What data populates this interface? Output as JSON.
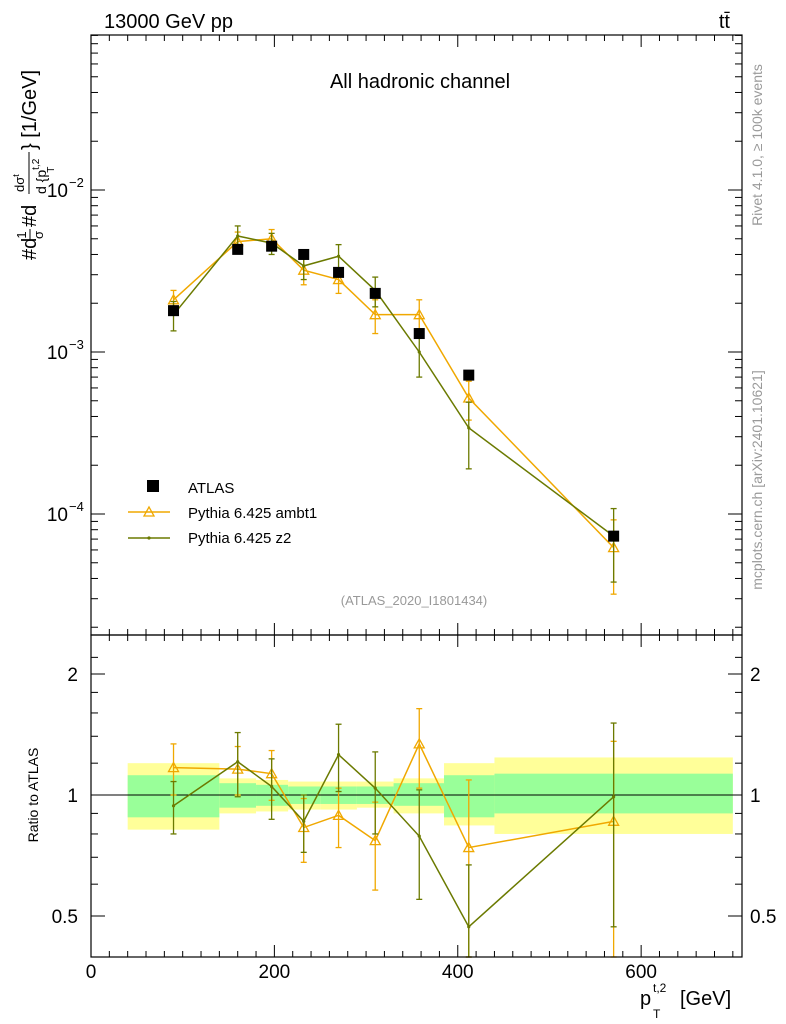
{
  "header": {
    "left": "13000 GeV pp",
    "right": "tt̄"
  },
  "side_text": {
    "rivet": "Rivet 4.1.0, ≥ 100k events",
    "mcplots": "mcplots.cern.ch [arXiv:2401.10621]"
  },
  "colors": {
    "data": "#000000",
    "ambt1": "#f0a800",
    "z2": "#6b7a00",
    "band_inner": "#99ff99",
    "band_outer": "#ffff99"
  },
  "chart_data": {
    "type": "scatter",
    "title": "All hadronic channel",
    "watermark": "(ATLAS_2020_I1801434)",
    "ylabel_main": {
      "pre": "#d",
      "frac1_num": "1",
      "frac1_den": "σ",
      "mid": "#d",
      "frac2_num": "dσ",
      "frac2_num_sup": "t",
      "frac2_den": "d {p",
      "frac2_den_sup": "t,2",
      "frac2_den_sub": "T",
      "close": "}",
      "units": "[1/GeV]"
    },
    "ylabel_ratio": "Ratio to ATLAS",
    "xlabel": {
      "main": "p",
      "sup": "t,2",
      "sub": "T",
      "units": "[GeV]"
    },
    "xlim": [
      0,
      710
    ],
    "ylim_main": [
      2e-05,
      0.1
    ],
    "ylim_ratio": [
      0.4,
      2.4
    ],
    "x_ticks": [
      "0",
      "200",
      "400",
      "600"
    ],
    "y_ticks_main": [
      {
        "base": "10",
        "exp": "−2"
      },
      {
        "base": "10",
        "exp": "−3"
      },
      {
        "base": "10",
        "exp": "−4"
      }
    ],
    "y_ticks_ratio": [
      "2",
      "1",
      "0.5"
    ],
    "legend": {
      "position": "bottom-left",
      "entries": [
        "ATLAS",
        "Pythia 6.425 ambt1",
        "Pythia 6.425 z2"
      ]
    },
    "bins": [
      {
        "lo": 40,
        "hi": 140
      },
      {
        "lo": 140,
        "hi": 180
      },
      {
        "lo": 180,
        "hi": 215
      },
      {
        "lo": 215,
        "hi": 250
      },
      {
        "lo": 250,
        "hi": 290
      },
      {
        "lo": 290,
        "hi": 330
      },
      {
        "lo": 330,
        "hi": 385
      },
      {
        "lo": 385,
        "hi": 440
      },
      {
        "lo": 440,
        "hi": 700
      }
    ],
    "atlas": {
      "name": "ATLAS",
      "x": [
        90,
        160,
        197,
        232,
        270,
        310,
        358,
        412,
        570
      ],
      "y": [
        0.0018,
        0.0043,
        0.0045,
        0.004,
        0.0031,
        0.0023,
        0.0013,
        0.00072,
        7.3e-05
      ],
      "band_inner": [
        [
          0.88,
          1.12
        ],
        [
          0.93,
          1.07
        ],
        [
          0.94,
          1.06
        ],
        [
          0.95,
          1.05
        ],
        [
          0.95,
          1.05
        ],
        [
          0.95,
          1.05
        ],
        [
          0.94,
          1.07
        ],
        [
          0.88,
          1.12
        ],
        [
          0.9,
          1.13
        ]
      ],
      "band_outer": [
        [
          0.82,
          1.2
        ],
        [
          0.9,
          1.1
        ],
        [
          0.91,
          1.09
        ],
        [
          0.92,
          1.08
        ],
        [
          0.92,
          1.08
        ],
        [
          0.93,
          1.08
        ],
        [
          0.9,
          1.1
        ],
        [
          0.84,
          1.2
        ],
        [
          0.8,
          1.24
        ]
      ]
    },
    "series": [
      {
        "name": "Pythia 6.425 ambt1",
        "x": [
          90,
          160,
          197,
          232,
          270,
          310,
          358,
          412,
          570
        ],
        "y": [
          0.0021,
          0.0048,
          0.005,
          0.0032,
          0.0028,
          0.0017,
          0.0017,
          0.00052,
          6.2e-05
        ],
        "y_err": [
          0.0003,
          0.0007,
          0.0007,
          0.0006,
          0.0005,
          0.0004,
          0.0004,
          0.00014,
          3e-05
        ],
        "ratio": [
          1.17,
          1.16,
          1.13,
          0.83,
          0.89,
          0.77,
          1.34,
          0.74,
          0.86
        ],
        "ratio_err": [
          0.17,
          0.16,
          0.16,
          0.15,
          0.15,
          0.19,
          0.3,
          0.35,
          0.5
        ]
      },
      {
        "name": "Pythia 6.425 z2",
        "x": [
          90,
          160,
          197,
          232,
          270,
          310,
          358,
          412,
          570
        ],
        "y": [
          0.0017,
          0.0052,
          0.0047,
          0.0034,
          0.0039,
          0.0024,
          0.001,
          0.00034,
          7.3e-05
        ],
        "y_err": [
          0.00035,
          0.0008,
          0.0007,
          0.0006,
          0.0007,
          0.0005,
          0.0003,
          0.00015,
          3.5e-05
        ],
        "ratio": [
          0.94,
          1.21,
          1.05,
          0.86,
          1.26,
          1.04,
          0.79,
          0.47,
          0.99
        ],
        "ratio_err": [
          0.14,
          0.22,
          0.18,
          0.14,
          0.24,
          0.24,
          0.24,
          0.2,
          0.52
        ]
      }
    ]
  }
}
